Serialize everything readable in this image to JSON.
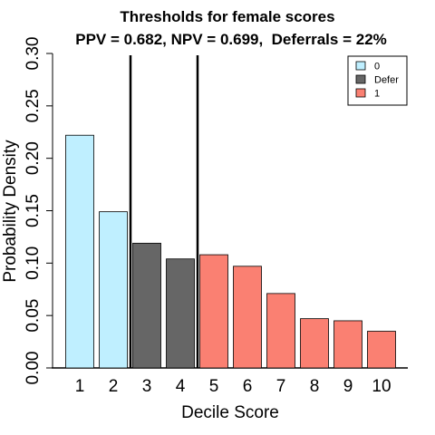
{
  "chart_data": {
    "type": "bar",
    "title": "Thresholds for female scores",
    "subtitle": "PPV = 0.682, NPV = 0.699,  Deferrals = 22%",
    "xlabel": "Decile Score",
    "ylabel": "Probability Density",
    "ylim": [
      0,
      0.3
    ],
    "yticks": [
      "0.00",
      "0.05",
      "0.10",
      "0.15",
      "0.20",
      "0.25",
      "0.30"
    ],
    "categories": [
      "1",
      "2",
      "3",
      "4",
      "5",
      "6",
      "7",
      "8",
      "9",
      "10"
    ],
    "values": [
      0.222,
      0.149,
      0.119,
      0.104,
      0.108,
      0.097,
      0.071,
      0.047,
      0.045,
      0.035
    ],
    "bar_groups": [
      "0",
      "0",
      "Defer",
      "Defer",
      "1",
      "1",
      "1",
      "1",
      "1",
      "1"
    ],
    "thresholds": [
      2.5,
      4.5
    ],
    "legend": {
      "position": "top-right",
      "items": [
        {
          "label": "0",
          "color": "#BFEFFF"
        },
        {
          "label": "Defer",
          "color": "#666666"
        },
        {
          "label": "1",
          "color": "#FA8072"
        }
      ]
    },
    "grid": false
  }
}
